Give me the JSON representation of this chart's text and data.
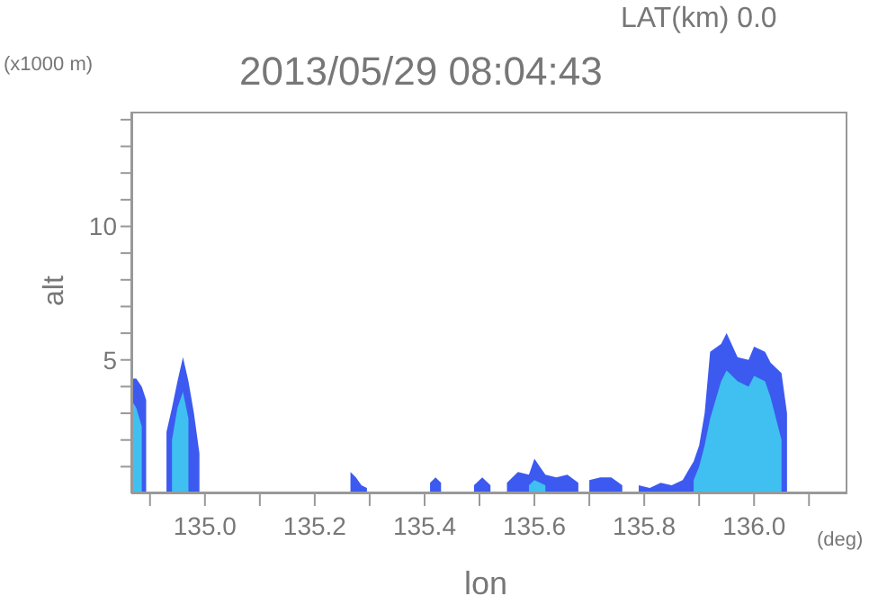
{
  "chart_data": {
    "type": "area",
    "title": "2013/05/29 08:04:43",
    "xlabel": "lon",
    "ylabel": "alt",
    "annotations": [
      "LAT(km) 0.0",
      "(x1000 m)",
      "(deg)"
    ],
    "x": [
      134.866,
      134.875,
      134.885,
      134.893,
      134.91,
      134.93,
      134.94,
      134.95,
      134.96,
      134.97,
      134.98,
      134.99,
      135.1,
      135.265,
      135.275,
      135.285,
      135.295,
      135.35,
      135.41,
      135.42,
      135.43,
      135.46,
      135.49,
      135.505,
      135.52,
      135.53,
      135.55,
      135.57,
      135.59,
      135.6,
      135.62,
      135.64,
      135.66,
      135.68,
      135.69,
      135.7,
      135.72,
      135.74,
      135.76,
      135.775,
      135.79,
      135.81,
      135.83,
      135.85,
      135.87,
      135.89,
      135.9,
      135.91,
      135.92,
      135.94,
      135.95,
      135.97,
      135.99,
      136.0,
      136.02,
      136.03,
      136.05,
      136.06
    ],
    "series": [
      {
        "color": "#3c5af0",
        "values": [
          4.3,
          4.3,
          4.0,
          3.5,
          null,
          2.3,
          3.2,
          4.2,
          5.1,
          4.2,
          3.0,
          1.5,
          null,
          0.8,
          0.6,
          0.3,
          0.2,
          null,
          0.4,
          0.6,
          0.4,
          null,
          0.3,
          0.6,
          0.3,
          null,
          0.4,
          0.8,
          0.7,
          1.3,
          0.7,
          0.6,
          0.7,
          0.4,
          null,
          0.5,
          0.6,
          0.6,
          0.3,
          null,
          0.3,
          0.2,
          0.4,
          0.3,
          0.5,
          1.2,
          1.8,
          3.0,
          5.3,
          5.6,
          6.0,
          5.1,
          5.0,
          5.5,
          5.3,
          4.9,
          4.5,
          3.0
        ]
      },
      {
        "color": "#3fc0f0",
        "values": [
          3.5,
          3.2,
          2.5,
          null,
          null,
          null,
          2.0,
          3.2,
          3.8,
          2.8,
          null,
          null,
          null,
          null,
          null,
          null,
          null,
          null,
          null,
          null,
          null,
          null,
          null,
          null,
          null,
          null,
          null,
          null,
          0.3,
          0.5,
          0.3,
          null,
          null,
          null,
          null,
          null,
          null,
          null,
          null,
          null,
          null,
          null,
          null,
          null,
          null,
          0.5,
          1.0,
          1.8,
          2.8,
          4.2,
          4.6,
          4.2,
          4.0,
          4.4,
          4.2,
          3.6,
          2.0,
          null
        ]
      }
    ],
    "xlim": [
      134.866,
      136.17
    ],
    "ylim": [
      0,
      14.3
    ],
    "xticks": [
      {
        "value": 134.9,
        "label": null
      },
      {
        "value": 135.0,
        "label": "135.0"
      },
      {
        "value": 135.1,
        "label": null
      },
      {
        "value": 135.2,
        "label": "135.2"
      },
      {
        "value": 135.3,
        "label": null
      },
      {
        "value": 135.4,
        "label": "135.4"
      },
      {
        "value": 135.5,
        "label": null
      },
      {
        "value": 135.6,
        "label": "135.6"
      },
      {
        "value": 135.7,
        "label": null
      },
      {
        "value": 135.8,
        "label": "135.8"
      },
      {
        "value": 135.9,
        "label": null
      },
      {
        "value": 136.0,
        "label": "136.0"
      },
      {
        "value": 136.1,
        "label": null
      }
    ],
    "yticks": [
      {
        "value": 1,
        "label": null
      },
      {
        "value": 2,
        "label": null
      },
      {
        "value": 3,
        "label": null
      },
      {
        "value": 4,
        "label": null
      },
      5,
      {
        "value": 6,
        "label": null
      },
      {
        "value": 7,
        "label": null
      },
      {
        "value": 8,
        "label": null
      },
      {
        "value": 9,
        "label": null
      },
      10,
      {
        "value": 11,
        "label": null
      },
      {
        "value": 12,
        "label": null
      },
      {
        "value": 13,
        "label": null
      },
      {
        "value": 14,
        "label": null
      }
    ]
  }
}
